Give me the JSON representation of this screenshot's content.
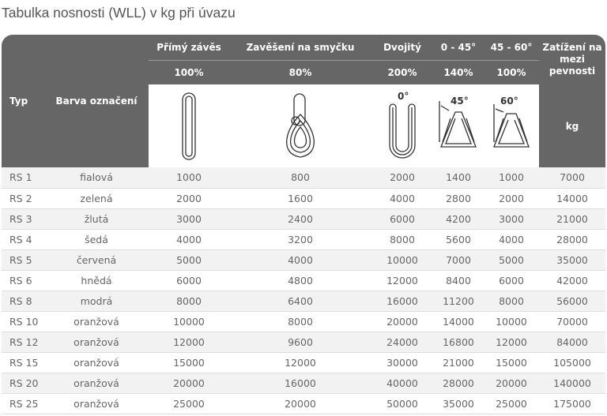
{
  "title": "Tabulka nosnosti (WLL) v kg při úvazu",
  "headers": {
    "typ": "Typ",
    "barva": "Barva označení",
    "primy": "Přímý závěs",
    "primy_pct": "100%",
    "smycka": "Zavěšení na smyčku",
    "smycka_pct": "80%",
    "dvojity": "Dvojitý",
    "dvojity_pct": "200%",
    "a045": "0 - 45°",
    "a045_pct": "140%",
    "a4560": "45 - 60°",
    "a4560_pct": "100%",
    "zatizeni": "Zatížení na mezi pevnosti",
    "unit": "kg",
    "angle0": "0°",
    "angle45": "45°",
    "angle60": "60°"
  },
  "rows": [
    [
      "RS 1",
      "fialová",
      "1000",
      "800",
      "2000",
      "1400",
      "1000",
      "7000"
    ],
    [
      "RS 2",
      "zelená",
      "2000",
      "1600",
      "4000",
      "2800",
      "2000",
      "14000"
    ],
    [
      "RS 3",
      "žlutá",
      "3000",
      "2400",
      "6000",
      "4200",
      "3000",
      "21000"
    ],
    [
      "RS 4",
      "šedá",
      "4000",
      "3200",
      "8000",
      "5600",
      "4000",
      "28000"
    ],
    [
      "RS 5",
      "červená",
      "5000",
      "4000",
      "10000",
      "7000",
      "5000",
      "35000"
    ],
    [
      "RS 6",
      "hnědá",
      "6000",
      "4800",
      "12000",
      "8400",
      "6000",
      "42000"
    ],
    [
      "RS 8",
      "modrá",
      "8000",
      "6400",
      "16000",
      "11200",
      "8000",
      "56000"
    ],
    [
      "RS 10",
      "oranžová",
      "10000",
      "8000",
      "20000",
      "14000",
      "10000",
      "70000"
    ],
    [
      "RS 12",
      "oranžová",
      "12000",
      "9600",
      "24000",
      "16800",
      "12000",
      "84000"
    ],
    [
      "RS 15",
      "oranžová",
      "15000",
      "12000",
      "30000",
      "21000",
      "15000",
      "105000"
    ],
    [
      "RS 20",
      "oranžová",
      "20000",
      "16000",
      "40000",
      "28000",
      "20000",
      "140000"
    ],
    [
      "RS 25",
      "oranžová",
      "25000",
      "20000",
      "50000",
      "35000",
      "25000",
      "175000"
    ]
  ]
}
